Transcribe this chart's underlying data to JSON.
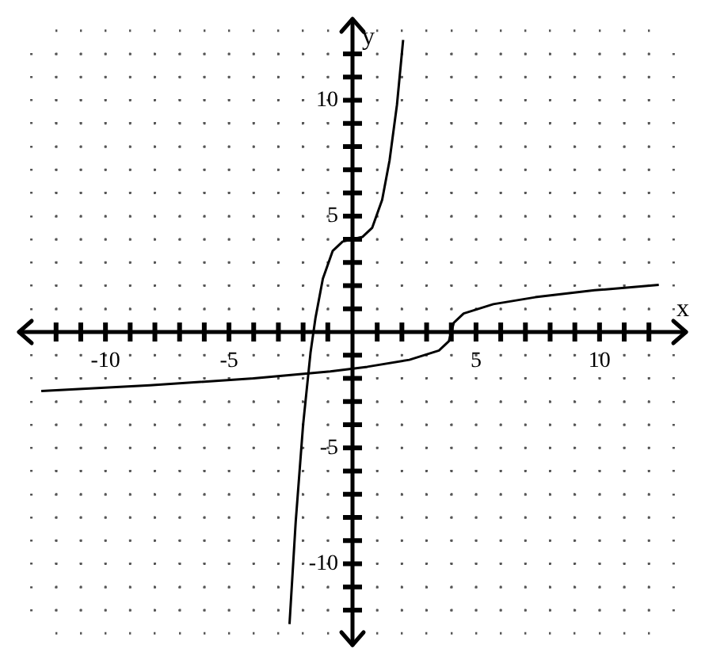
{
  "chart_data": {
    "type": "line",
    "xlabel": "x",
    "ylabel": "y",
    "xlim": [
      -13.5,
      13.5
    ],
    "ylim": [
      -13.5,
      13.5
    ],
    "xticks": [
      {
        "value": -12,
        "label": null
      },
      {
        "value": -11,
        "label": null
      },
      -10,
      {
        "value": -9,
        "label": null
      },
      {
        "value": -8,
        "label": null
      },
      {
        "value": -7,
        "label": null
      },
      {
        "value": -6,
        "label": null
      },
      -5,
      {
        "value": -4,
        "label": null
      },
      {
        "value": -3,
        "label": null
      },
      {
        "value": -2,
        "label": null
      },
      {
        "value": -1,
        "label": null
      },
      {
        "value": 1,
        "label": null
      },
      {
        "value": 2,
        "label": null
      },
      {
        "value": 3,
        "label": null
      },
      {
        "value": 4,
        "label": null
      },
      5,
      {
        "value": 6,
        "label": null
      },
      {
        "value": 7,
        "label": null
      },
      {
        "value": 8,
        "label": null
      },
      {
        "value": 9,
        "label": null
      },
      10,
      {
        "value": 11,
        "label": null
      },
      {
        "value": 12,
        "label": null
      }
    ],
    "yticks": [
      {
        "value": -12,
        "label": null
      },
      {
        "value": -11,
        "label": null
      },
      -10,
      {
        "value": -9,
        "label": null
      },
      {
        "value": -8,
        "label": null
      },
      {
        "value": -7,
        "label": null
      },
      {
        "value": -6,
        "label": null
      },
      -5,
      {
        "value": -4,
        "label": null
      },
      {
        "value": -3,
        "label": null
      },
      {
        "value": -2,
        "label": null
      },
      {
        "value": -1,
        "label": null
      },
      {
        "value": 1,
        "label": null
      },
      {
        "value": 2,
        "label": null
      },
      {
        "value": 3,
        "label": null
      },
      {
        "value": 4,
        "label": null
      },
      5,
      {
        "value": 6,
        "label": null
      },
      {
        "value": 7,
        "label": null
      },
      {
        "value": 8,
        "label": null
      },
      {
        "value": 9,
        "label": null
      },
      10,
      {
        "value": 11,
        "label": null
      },
      {
        "value": 12,
        "label": null
      }
    ],
    "grid": true,
    "legend": false,
    "marker": "none",
    "line_style": "solid",
    "series": [
      {
        "color": "#000000",
        "x": [
          -2.55,
          -2.3,
          -2,
          -1.7,
          -1.5,
          -1.2,
          -0.8,
          -0.4,
          0,
          0.4,
          0.8,
          1.2,
          1.5,
          1.8,
          2.05
        ],
        "values": [
          -12.6,
          -8.2,
          -4,
          -0.9,
          0.6,
          2.3,
          3.5,
          3.9,
          4,
          4.1,
          4.5,
          5.7,
          7.4,
          9.8,
          12.6
        ]
      },
      {
        "color": "#000000",
        "x": [
          -12.6,
          -8.2,
          -4,
          -0.9,
          0.6,
          2.3,
          3.5,
          3.9,
          4,
          4.1,
          4.5,
          5.7,
          7.4,
          9.8,
          12.4
        ],
        "values": [
          -2.55,
          -2.3,
          -2,
          -1.7,
          -1.5,
          -1.2,
          -0.8,
          -0.4,
          0,
          0.4,
          0.8,
          1.2,
          1.5,
          1.8,
          2.03
        ]
      }
    ]
  }
}
